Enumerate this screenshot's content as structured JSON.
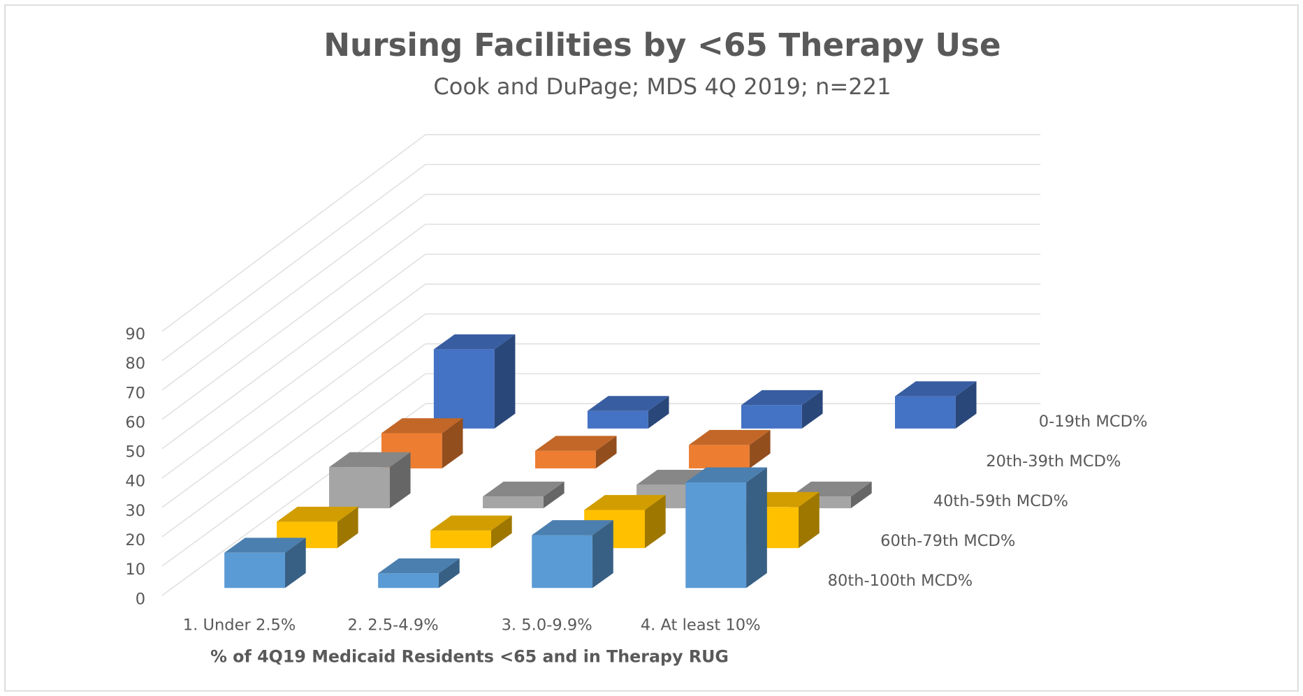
{
  "chart_data": {
    "type": "bar3d",
    "title": "Nursing Facilities by <65 Therapy Use",
    "subtitle": "Cook and DuPage; MDS 4Q 2019; n=221",
    "x_label": "% of 4Q19 Medicaid Residents <65 and in Therapy RUG",
    "categories": [
      "1. Under 2.5%",
      "2.  2.5-4.9%",
      "3. 5.0-9.9%",
      "4. At least 10%"
    ],
    "series": [
      {
        "name": "0-19th MCD%",
        "color": "#4472c4",
        "values": [
          27,
          6,
          8,
          11
        ]
      },
      {
        "name": "20th-39th MCD%",
        "color": "#ed7d31",
        "values": [
          12,
          6,
          8,
          0
        ]
      },
      {
        "name": "40th-59th MCD%",
        "color": "#a5a5a5",
        "values": [
          14,
          4,
          8,
          4
        ]
      },
      {
        "name": "60th-79th MCD%",
        "color": "#ffc000",
        "values": [
          9,
          6,
          13,
          14
        ]
      },
      {
        "name": "80th-100th MCD%",
        "color": "#5b9bd5",
        "values": [
          12,
          5,
          18,
          36
        ]
      }
    ],
    "ylim": [
      0,
      90
    ],
    "yticks": [
      0,
      10,
      20,
      30,
      40,
      50,
      60,
      70,
      80,
      90
    ],
    "grid": true
  }
}
